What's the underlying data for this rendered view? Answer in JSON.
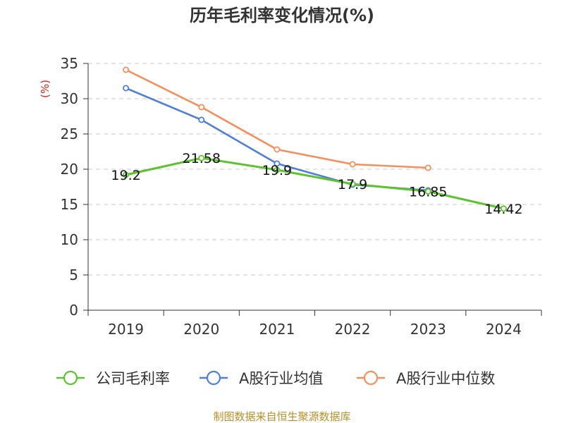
{
  "chart_data": {
    "type": "line",
    "title": "历年毛利率变化情况(%)",
    "ylabel": "(%)",
    "xlabel": "",
    "categories": [
      "2019",
      "2020",
      "2021",
      "2022",
      "2023",
      "2024"
    ],
    "ylim": [
      0,
      35
    ],
    "yticks": [
      0,
      5,
      10,
      15,
      20,
      25,
      30,
      35
    ],
    "grid": true,
    "legend_position": "bottom",
    "series": [
      {
        "name": "公司毛利率",
        "color": "#5cc22e",
        "values": [
          19.2,
          21.58,
          19.9,
          17.9,
          16.85,
          14.42
        ],
        "data_labels": [
          "19.2",
          "21.58",
          "19.9",
          "17.9",
          "16.85",
          "14.42"
        ]
      },
      {
        "name": "A股行业均值",
        "color": "#4e7fd9",
        "values": [
          31.5,
          27.0,
          20.8,
          17.8,
          17.0,
          null
        ]
      },
      {
        "name": "A股行业中位数",
        "color": "#f58f5a",
        "values": [
          34.1,
          28.8,
          22.8,
          20.7,
          20.2,
          null
        ]
      }
    ]
  },
  "source": "制图数据来自恒生聚源数据库"
}
